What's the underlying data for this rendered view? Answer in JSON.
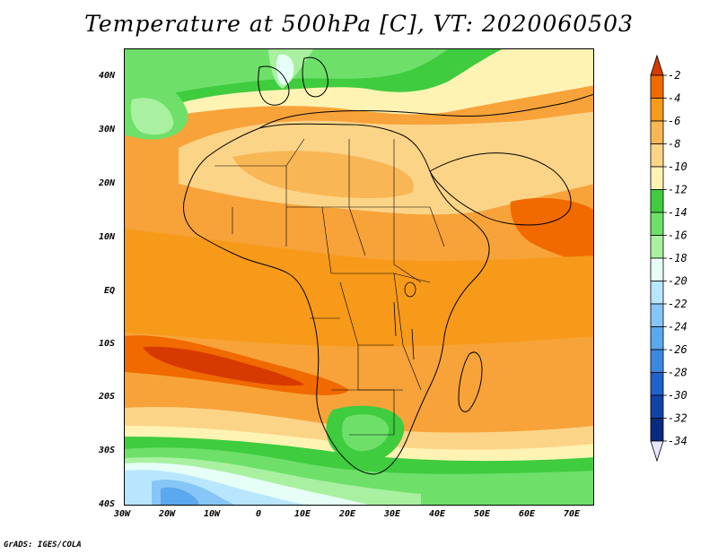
{
  "title": "Temperature at 500hPa [C], VT: 2020060503",
  "footer": "GrADS: IGES/COLA",
  "axes": {
    "lat_labels": [
      "40N",
      "30N",
      "20N",
      "10N",
      "EQ",
      "10S",
      "20S",
      "30S",
      "40S"
    ],
    "lon_labels": [
      "30W",
      "20W",
      "10W",
      "0",
      "10E",
      "20E",
      "30E",
      "40E",
      "50E",
      "60E",
      "70E"
    ],
    "lat_values": [
      40,
      30,
      20,
      10,
      0,
      -10,
      -20,
      -30,
      -40
    ],
    "lon_values": [
      -30,
      -20,
      -10,
      0,
      10,
      20,
      30,
      40,
      50,
      60,
      70
    ],
    "lat_range": [
      -40,
      45
    ],
    "lon_range": [
      -30,
      75
    ]
  },
  "colorbar": {
    "labels": [
      "-2",
      "-4",
      "-6",
      "-8",
      "-10",
      "-12",
      "-14",
      "-16",
      "-18",
      "-20",
      "-22",
      "-24",
      "-26",
      "-28",
      "-30",
      "-32",
      "-34"
    ],
    "colors": [
      "#d73a00",
      "#f06a00",
      "#f79a1a",
      "#f9b654",
      "#fcd488",
      "#fff3b4",
      "#3fcc3f",
      "#6ee06a",
      "#a9f0a0",
      "#e6fff6",
      "#b9e6ff",
      "#86c6f6",
      "#5aa8ee",
      "#3a88e2",
      "#1f62cc",
      "#1244a8",
      "#0a2a80",
      "#061a5c"
    ],
    "units": "C"
  }
}
